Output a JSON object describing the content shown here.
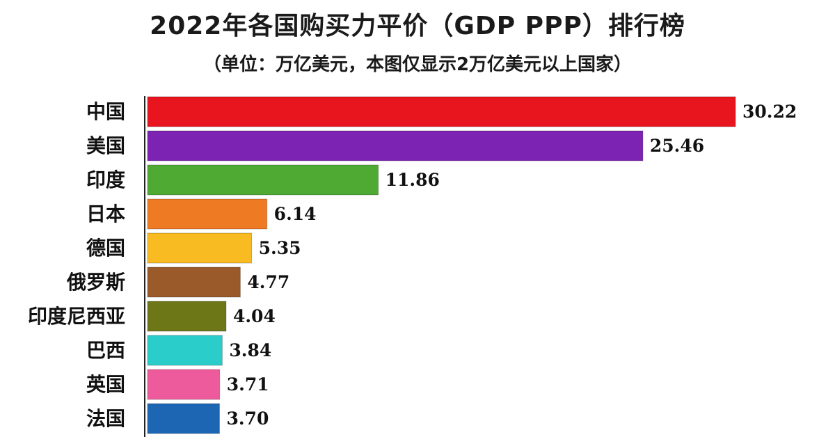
{
  "chart_data": {
    "type": "bar",
    "orientation": "horizontal",
    "title": "2022年各国购买力平价（GDP PPP）排行榜",
    "subtitle": "（单位：万亿美元，本图仅显示2万亿美元以上国家）",
    "categories": [
      "中国",
      "美国",
      "印度",
      "日本",
      "德国",
      "俄罗斯",
      "印度尼西亚",
      "巴西",
      "英国",
      "法国"
    ],
    "values": [
      30.22,
      25.46,
      11.86,
      6.14,
      5.35,
      4.77,
      4.04,
      3.84,
      3.71,
      3.7
    ],
    "value_labels": [
      "30.22",
      "25.46",
      "11.86",
      "6.14",
      "5.35",
      "4.77",
      "4.04",
      "3.84",
      "3.71",
      "3.70"
    ],
    "colors": [
      "#e8141e",
      "#7c23b4",
      "#4faa34",
      "#ef7a24",
      "#f8bb22",
      "#9a5a2a",
      "#6e7717",
      "#2bcdca",
      "#ee5b9c",
      "#1c66b4"
    ],
    "xlim": [
      0,
      30.22
    ],
    "grid": false,
    "legend": "none"
  }
}
